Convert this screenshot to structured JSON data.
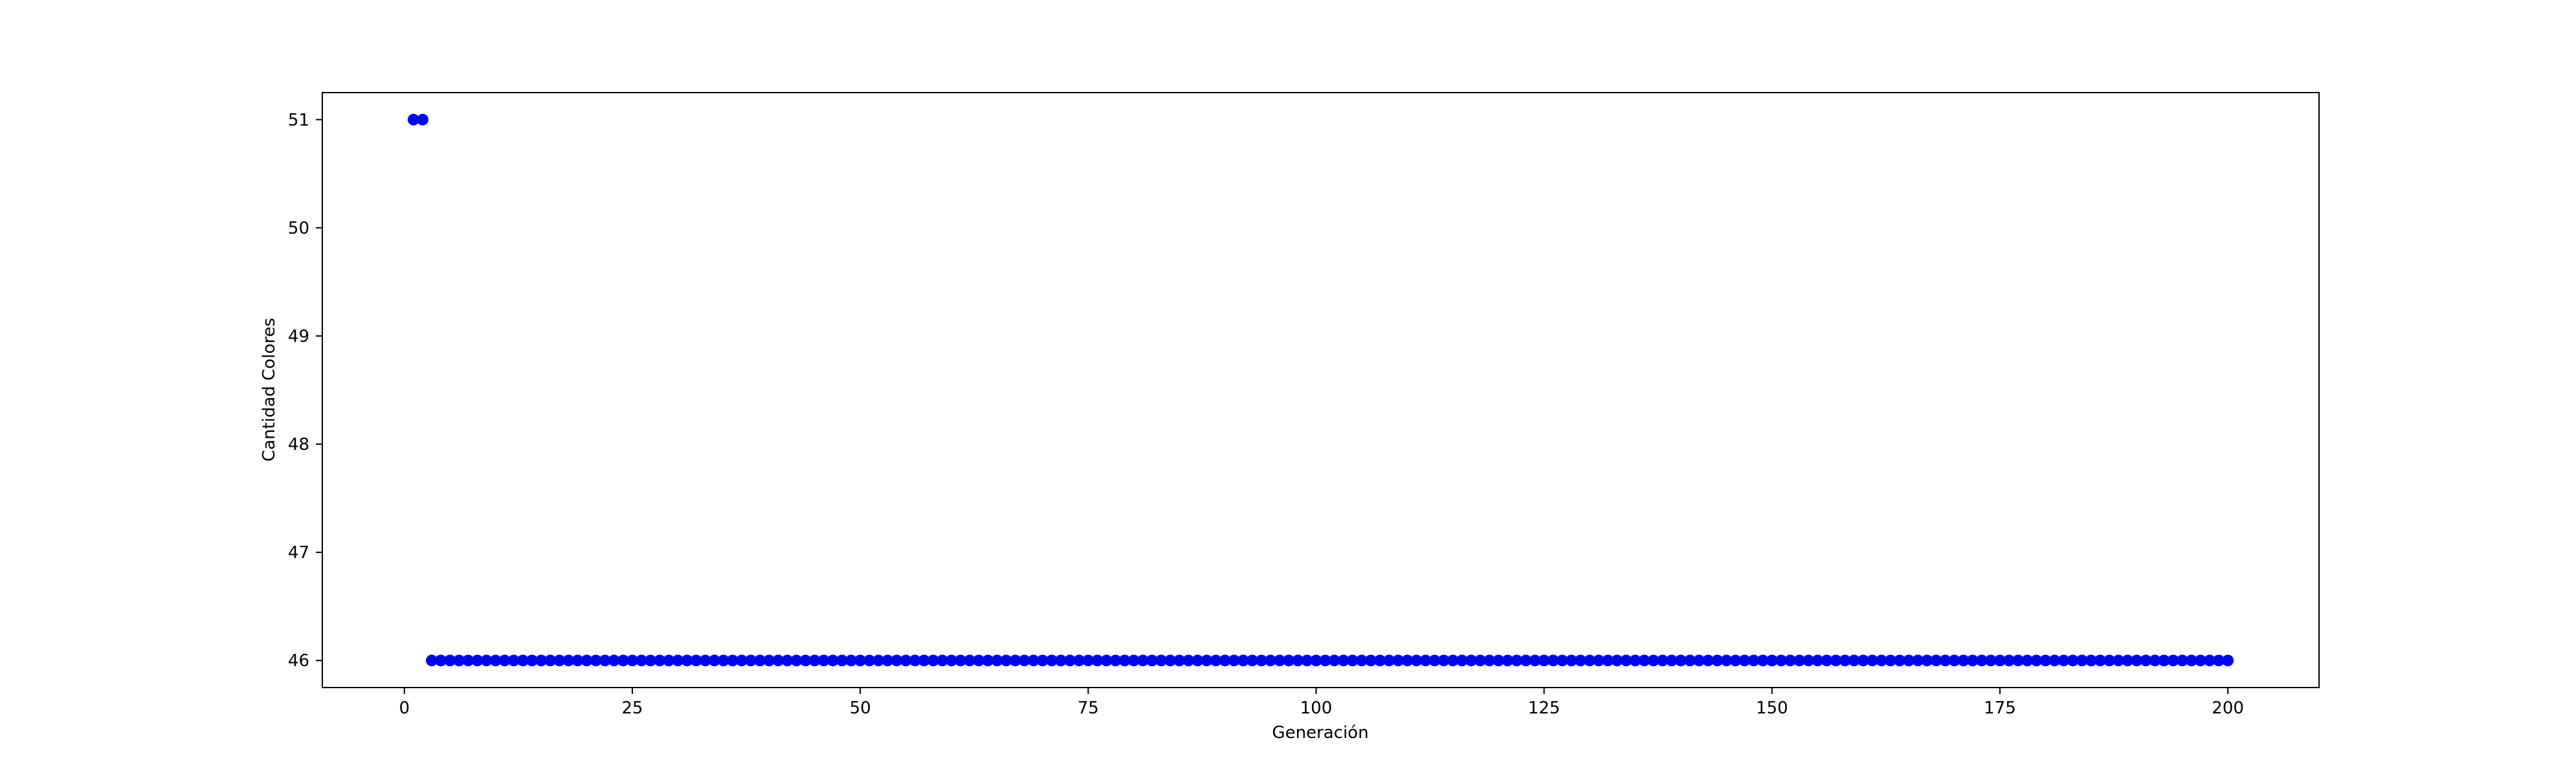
{
  "chart_data": {
    "type": "scatter",
    "title": "",
    "xlabel": "Generación",
    "ylabel": "Cantidad Colores",
    "xlim": [
      -9,
      210
    ],
    "ylim": [
      45.75,
      51.25
    ],
    "xticks": [
      0,
      25,
      50,
      75,
      100,
      125,
      150,
      175,
      200
    ],
    "yticks": [
      46,
      47,
      48,
      49,
      50,
      51
    ],
    "grid": false,
    "legend": "none",
    "marker_color": "#0000ff",
    "series": [
      {
        "points": [
          [
            1,
            51
          ],
          [
            2,
            51
          ]
        ],
        "range": {
          "start": 3,
          "end": 200,
          "step": 1,
          "y": 46
        }
      }
    ]
  }
}
